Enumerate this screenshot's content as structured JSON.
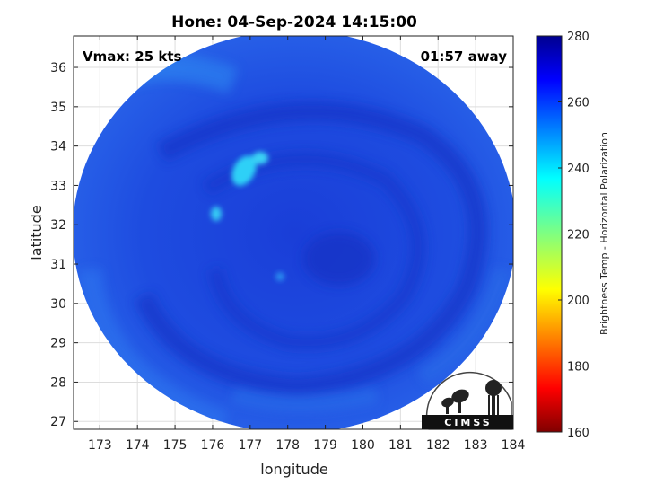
{
  "title": "Hone: 04-Sep-2024 14:15:00",
  "annotations": {
    "vmax": "Vmax: 25 kts",
    "time_away": "01:57 away"
  },
  "axes": {
    "xlabel": "longitude",
    "ylabel": "latitude",
    "x_ticks": [
      "173",
      "174",
      "175",
      "176",
      "177",
      "178",
      "179",
      "180",
      "181",
      "182",
      "183",
      "184"
    ],
    "y_ticks": [
      "27",
      "28",
      "29",
      "30",
      "31",
      "32",
      "33",
      "34",
      "35",
      "36"
    ],
    "xlim": [
      172.3,
      184.0
    ],
    "ylim": [
      26.8,
      36.8
    ]
  },
  "colorbar": {
    "label": "Brightness Temp - Horizontal Polarization",
    "ticks": [
      "280",
      "260",
      "240",
      "220",
      "200",
      "180",
      "160"
    ],
    "range": [
      160,
      280
    ],
    "colormap": "jet"
  },
  "logo": {
    "text": "CIMSS"
  },
  "colors": {
    "background_blue": "#1f4fe0",
    "cyan_feature": "#28c6f5",
    "axis": "#222222"
  },
  "chart_data": {
    "type": "heatmap",
    "xlabel": "longitude",
    "ylabel": "latitude",
    "xlim": [
      172.3,
      184.0
    ],
    "ylim": [
      26.8,
      36.8
    ],
    "center": {
      "lon": 179.1,
      "lat": 31.2
    },
    "features": [
      {
        "lon": 176.8,
        "lat": 33.3,
        "value": 235
      },
      {
        "lon": 176.0,
        "lat": 32.4,
        "value": 240
      },
      {
        "lon": 177.8,
        "lat": 30.7,
        "value": 250
      }
    ],
    "grid": true
  }
}
